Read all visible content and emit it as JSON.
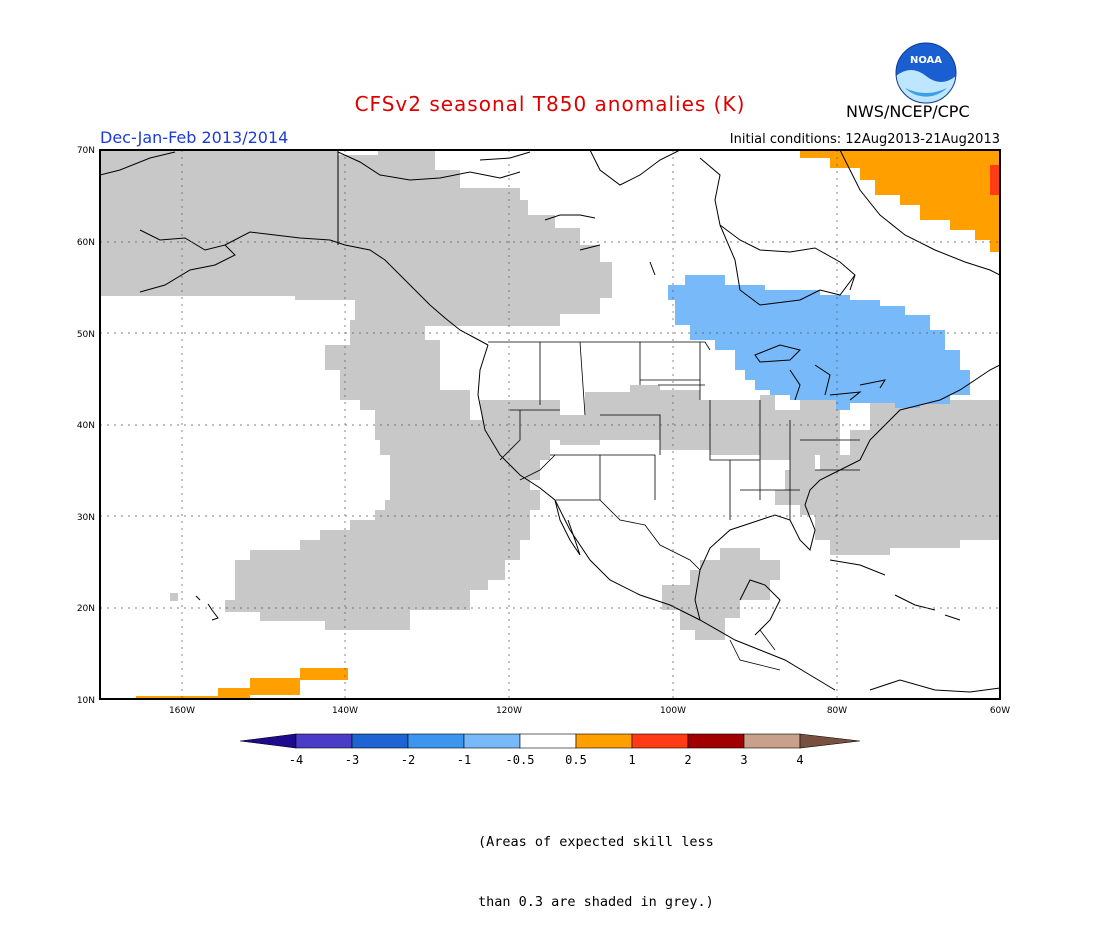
{
  "header": {
    "title": "CFSv2 seasonal T850 anomalies (K)",
    "agency": "NWS/NCEP/CPC",
    "logo_text": "NOAA",
    "period": "Dec-Jan-Feb 2013/2014",
    "initial_conditions": "Initial conditions: 12Aug2013-21Aug2013"
  },
  "map": {
    "lat_labels": [
      "10N",
      "20N",
      "30N",
      "40N",
      "50N",
      "60N",
      "70N"
    ],
    "lon_labels": [
      "160W",
      "140W",
      "120W",
      "100W",
      "80W",
      "60W"
    ],
    "lat_range": [
      10,
      70
    ],
    "lon_range": [
      -170,
      -60
    ]
  },
  "legend": {
    "levels": [
      "-4",
      "-3",
      "-2",
      "-1",
      "-0.5",
      "0.5",
      "1",
      "2",
      "3",
      "4"
    ],
    "colors": {
      "lt_-4": "#1e0a8c",
      "-4_-3": "#4b3cc8",
      "-3_-2": "#1e64d2",
      "-2_-1": "#3c96f0",
      "-1_-0.5": "#78b9fa",
      "-0.5_0.5": "#ffffff",
      "0.5_1": "#ffa000",
      "1_2": "#ff3c14",
      "2_3": "#a00000",
      "3_4": "#c8a08c",
      "gt_4": "#785040"
    }
  },
  "colors": {
    "title": "#dd0000",
    "period": "#1d3cd6",
    "low_skill_grey": "#c8c8c8",
    "negative_anomaly": "#78b9fa",
    "positive_anomaly": "#ffa000",
    "strong_positive": "#ff3c14"
  },
  "note": {
    "line1": "(Areas of expected skill less",
    "line2": "than 0.3 are shaded in grey.)"
  }
}
